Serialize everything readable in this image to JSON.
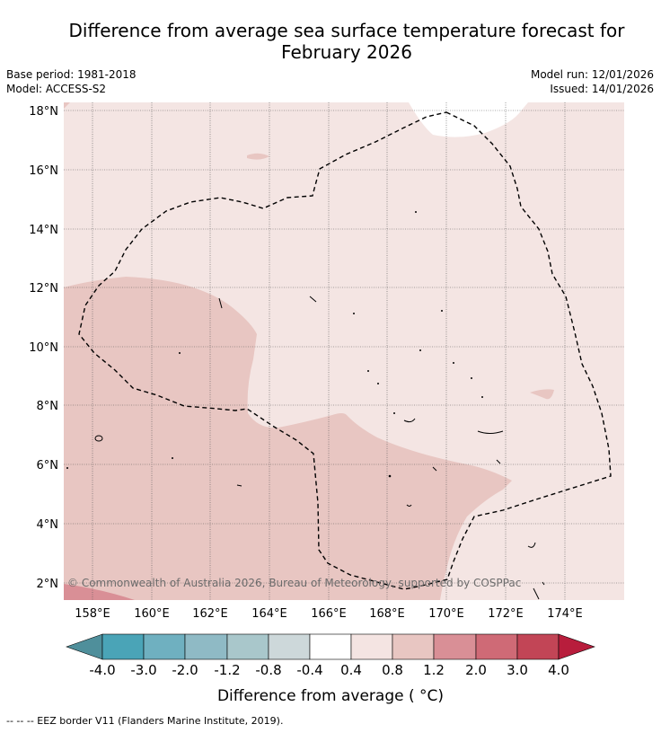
{
  "title_line1": "Difference from average sea surface temperature forecast for",
  "title_line2": "February 2026",
  "base_period": "Base period: 1981-2018",
  "model": "Model: ACCESS-S2",
  "model_run": "Model run: 12/01/2026",
  "issued": "Issued: 14/01/2026",
  "copyright": "© Commonwealth of Australia 2026, Bureau of Meteorology, supported by COSPPac",
  "footer_legend": "--  --  -- EEZ border V11 (Flanders Marine Institute, 2019).",
  "map": {
    "lon_ticks": [
      "158°E",
      "160°E",
      "162°E",
      "164°E",
      "166°E",
      "168°E",
      "170°E",
      "172°E",
      "174°E"
    ],
    "lat_ticks": [
      "18°N",
      "16°N",
      "14°N",
      "12°N",
      "10°N",
      "8°N",
      "6°N",
      "4°N",
      "2°N"
    ]
  },
  "colorbar": {
    "title": "Difference from average ( °C)",
    "labels": [
      "-4.0",
      "-3.0",
      "-2.0",
      "-1.2",
      "-0.8",
      "-0.4",
      "0.4",
      "0.8",
      "1.2",
      "2.0",
      "3.0",
      "4.0"
    ],
    "colors": [
      "#4f8f9b",
      "#4aa4b7",
      "#6fb0c0",
      "#8fbac5",
      "#a9c7cb",
      "#cdd8da",
      "#ffffff",
      "#f4e4e2",
      "#e8c6c2",
      "#d98f96",
      "#cf6a76",
      "#c24556",
      "#b81d3c"
    ]
  }
}
